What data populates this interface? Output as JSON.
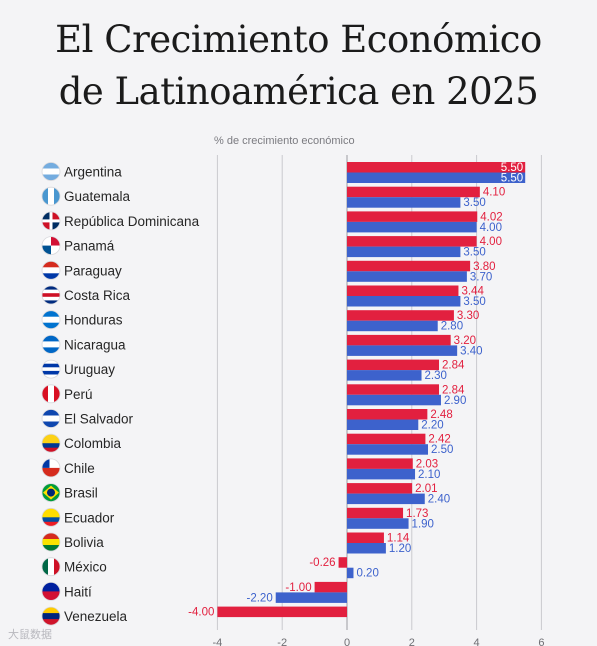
{
  "header": {
    "title_line1": "El Crecimiento Económico",
    "title_line2": "de Latinoamérica en 2025"
  },
  "watermark": "大鼠数据",
  "colors": {
    "series1": "#e2203f",
    "series2": "#3d62cc",
    "grid": "#c9c9ce"
  },
  "chart_data": {
    "type": "bar",
    "orientation": "horizontal",
    "title": "El Crecimiento Económico de Latinoamérica en 2025",
    "subtitle": "% de crecimiento económico",
    "categories": [
      "Argentina",
      "Guatemala",
      "República Dominicana",
      "Panamá",
      "Paraguay",
      "Costa Rica",
      "Honduras",
      "Nicaragua",
      "Uruguay",
      "Perú",
      "El Salvador",
      "Colombia",
      "Chile",
      "Brasil",
      "Ecuador",
      "Bolivia",
      "México",
      "Haití",
      "Venezuela"
    ],
    "flag_icons": [
      "argentina-flag-icon",
      "guatemala-flag-icon",
      "dominican-republic-flag-icon",
      "panama-flag-icon",
      "paraguay-flag-icon",
      "costa-rica-flag-icon",
      "honduras-flag-icon",
      "nicaragua-flag-icon",
      "uruguay-flag-icon",
      "peru-flag-icon",
      "el-salvador-flag-icon",
      "colombia-flag-icon",
      "chile-flag-icon",
      "brazil-flag-icon",
      "ecuador-flag-icon",
      "bolivia-flag-icon",
      "mexico-flag-icon",
      "haiti-flag-icon",
      "venezuela-flag-icon"
    ],
    "series": [
      {
        "color": "#e2203f",
        "values": [
          5.5,
          4.1,
          4.02,
          4.0,
          3.8,
          3.44,
          3.3,
          3.2,
          2.84,
          2.84,
          2.48,
          2.42,
          2.03,
          2.01,
          1.73,
          1.14,
          -0.26,
          -1.0,
          -4.0
        ],
        "labels": [
          "5.50",
          "4.10",
          "4.02",
          "4.00",
          "3.80",
          "3.44",
          "3.30",
          "3.20",
          "2.84",
          "2.84",
          "2.48",
          "2.42",
          "2.03",
          "2.01",
          "1.73",
          "1.14",
          "-0.26",
          "-1.00",
          "-4.00"
        ]
      },
      {
        "color": "#3d62cc",
        "values": [
          5.5,
          3.5,
          4.0,
          3.5,
          3.7,
          3.5,
          2.8,
          3.4,
          2.3,
          2.9,
          2.2,
          2.5,
          2.1,
          2.4,
          1.9,
          1.2,
          0.2,
          -2.2,
          null
        ],
        "labels": [
          "5.50",
          "3.50",
          "4.00",
          "3.50",
          "3.70",
          "3.50",
          "2.80",
          "3.40",
          "2.30",
          "2.90",
          "2.20",
          "2.50",
          "2.10",
          "2.40",
          "1.90",
          "1.20",
          "0.20",
          "-2.20",
          ""
        ]
      }
    ],
    "xlim": [
      -4,
      6
    ],
    "xticks": [
      -4,
      -2,
      0,
      2,
      4,
      6
    ],
    "xtick_labels": [
      "-4",
      "-2",
      "0",
      "2",
      "4",
      "6"
    ],
    "grid": true,
    "legend": "none"
  }
}
